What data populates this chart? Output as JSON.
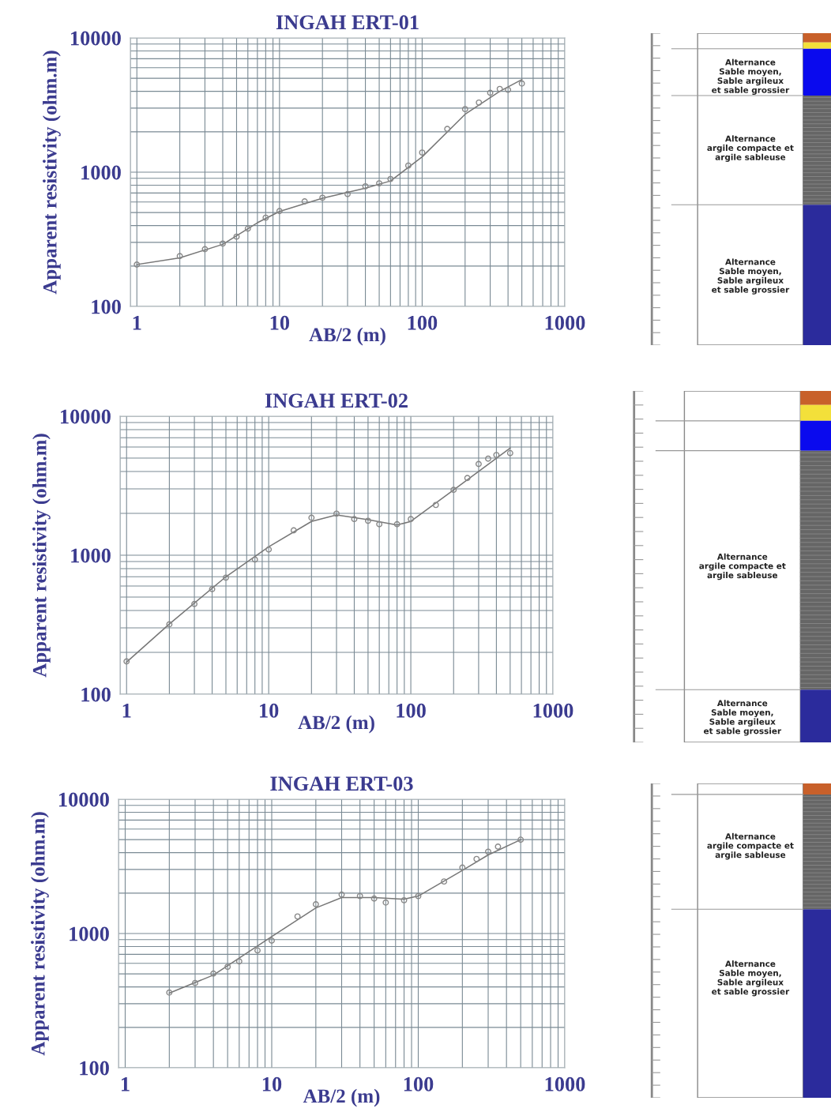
{
  "chart_data": [
    {
      "type": "scatter",
      "title": "INGAH ERT-01",
      "xlabel": "AB/2 (m)",
      "ylabel": "Apparent resistivity (ohm.m)",
      "log": "xy",
      "grid": true,
      "xlim": [
        0.9,
        1000
      ],
      "ylim": [
        100,
        10000
      ],
      "xticks": [
        1,
        10,
        100,
        1000
      ],
      "yticks": [
        100,
        1000,
        10000
      ],
      "series": [
        {
          "type": "scatter",
          "marker": "circle",
          "color": "#888888",
          "x": [
            1,
            2,
            3,
            4,
            5,
            6,
            8,
            10,
            15,
            20,
            30,
            40,
            50,
            60,
            80,
            100,
            150,
            200,
            250,
            300,
            350,
            400,
            500
          ],
          "values": [
            205,
            237,
            267,
            294,
            331,
            380,
            458,
            513,
            606,
            645,
            687,
            785,
            826,
            890,
            1120,
            1400,
            2100,
            2950,
            3300,
            3900,
            4170,
            4100,
            4570
          ]
        },
        {
          "type": "line",
          "color": "#777777",
          "line_style": "solid",
          "x": [
            1,
            2,
            4,
            7,
            10,
            20,
            40,
            60,
            100,
            200,
            350,
            500
          ],
          "values": [
            205,
            230,
            290,
            420,
            510,
            640,
            760,
            860,
            1300,
            2700,
            4000,
            4900
          ]
        }
      ]
    },
    {
      "type": "other",
      "annotations": [
        "Alternance\nSable moyen,\nSable argileux\net sable grossier",
        "Alternance\nargile compacte et\nargile sableuse",
        "Alternance\nSable moyen,\nSable argileux\net sable grossier"
      ]
    },
    {
      "type": "scatter",
      "title": "INGAH ERT-02",
      "xlabel": "AB/2 (m)",
      "ylabel": "Apparent resistivity (ohm.m)",
      "log": "xy",
      "grid": true,
      "xlim": [
        0.9,
        1000
      ],
      "ylim": [
        100,
        10000
      ],
      "xticks": [
        1,
        10,
        100,
        1000
      ],
      "yticks": [
        100,
        1000,
        10000
      ],
      "series": [
        {
          "type": "scatter",
          "marker": "circle",
          "color": "#888888",
          "x": [
            1,
            2,
            3,
            4,
            5,
            8,
            10,
            15,
            20,
            30,
            40,
            50,
            60,
            80,
            100,
            150,
            200,
            250,
            300,
            350,
            400,
            500
          ],
          "values": [
            172,
            318,
            446,
            570,
            690,
            930,
            1100,
            1510,
            1860,
            1990,
            1820,
            1770,
            1670,
            1670,
            1820,
            2300,
            2950,
            3590,
            4530,
            4950,
            5260,
            5430
          ]
        },
        {
          "type": "line",
          "color": "#777777",
          "line_style": "solid",
          "x": [
            1,
            2,
            5,
            10,
            20,
            30,
            50,
            80,
            100,
            200,
            500
          ],
          "values": [
            170,
            320,
            700,
            1150,
            1750,
            1950,
            1800,
            1650,
            1750,
            2950,
            5900
          ]
        }
      ]
    },
    {
      "type": "other",
      "annotations": [
        "Alternance\nargile compacte et\nargile sableuse",
        "Alternance\nSable moyen,\nSable argileux\net sable grossier"
      ]
    },
    {
      "type": "scatter",
      "title": "INGAH ERT-03",
      "xlabel": "AB/2 (m)",
      "ylabel": "Apparent resistivity (ohm.m)",
      "log": "xy",
      "grid": true,
      "xlim": [
        0.9,
        1000
      ],
      "ylim": [
        100,
        10000
      ],
      "xticks": [
        1,
        10,
        100,
        1000
      ],
      "yticks": [
        100,
        1000,
        10000
      ],
      "series": [
        {
          "type": "scatter",
          "marker": "circle",
          "color": "#888888",
          "x": [
            2,
            3,
            4,
            5,
            6,
            8,
            10,
            15,
            20,
            30,
            40,
            50,
            60,
            80,
            100,
            150,
            200,
            250,
            300,
            350,
            500
          ],
          "values": [
            363,
            428,
            503,
            565,
            620,
            748,
            886,
            1340,
            1650,
            1950,
            1900,
            1820,
            1700,
            1770,
            1900,
            2440,
            3100,
            3590,
            4070,
            4440,
            5000
          ]
        },
        {
          "type": "line",
          "color": "#777777",
          "line_style": "solid",
          "x": [
            2,
            4,
            10,
            20,
            30,
            50,
            80,
            100,
            200,
            300,
            500
          ],
          "values": [
            360,
            490,
            950,
            1550,
            1850,
            1850,
            1800,
            1900,
            2950,
            3850,
            5000
          ]
        }
      ]
    },
    {
      "type": "other",
      "annotations": [
        "Alternance\nargile compacte et\nargile sableuse",
        "Alternance\nSable moyen,\nSable argileux\net sable grossier"
      ]
    }
  ]
}
